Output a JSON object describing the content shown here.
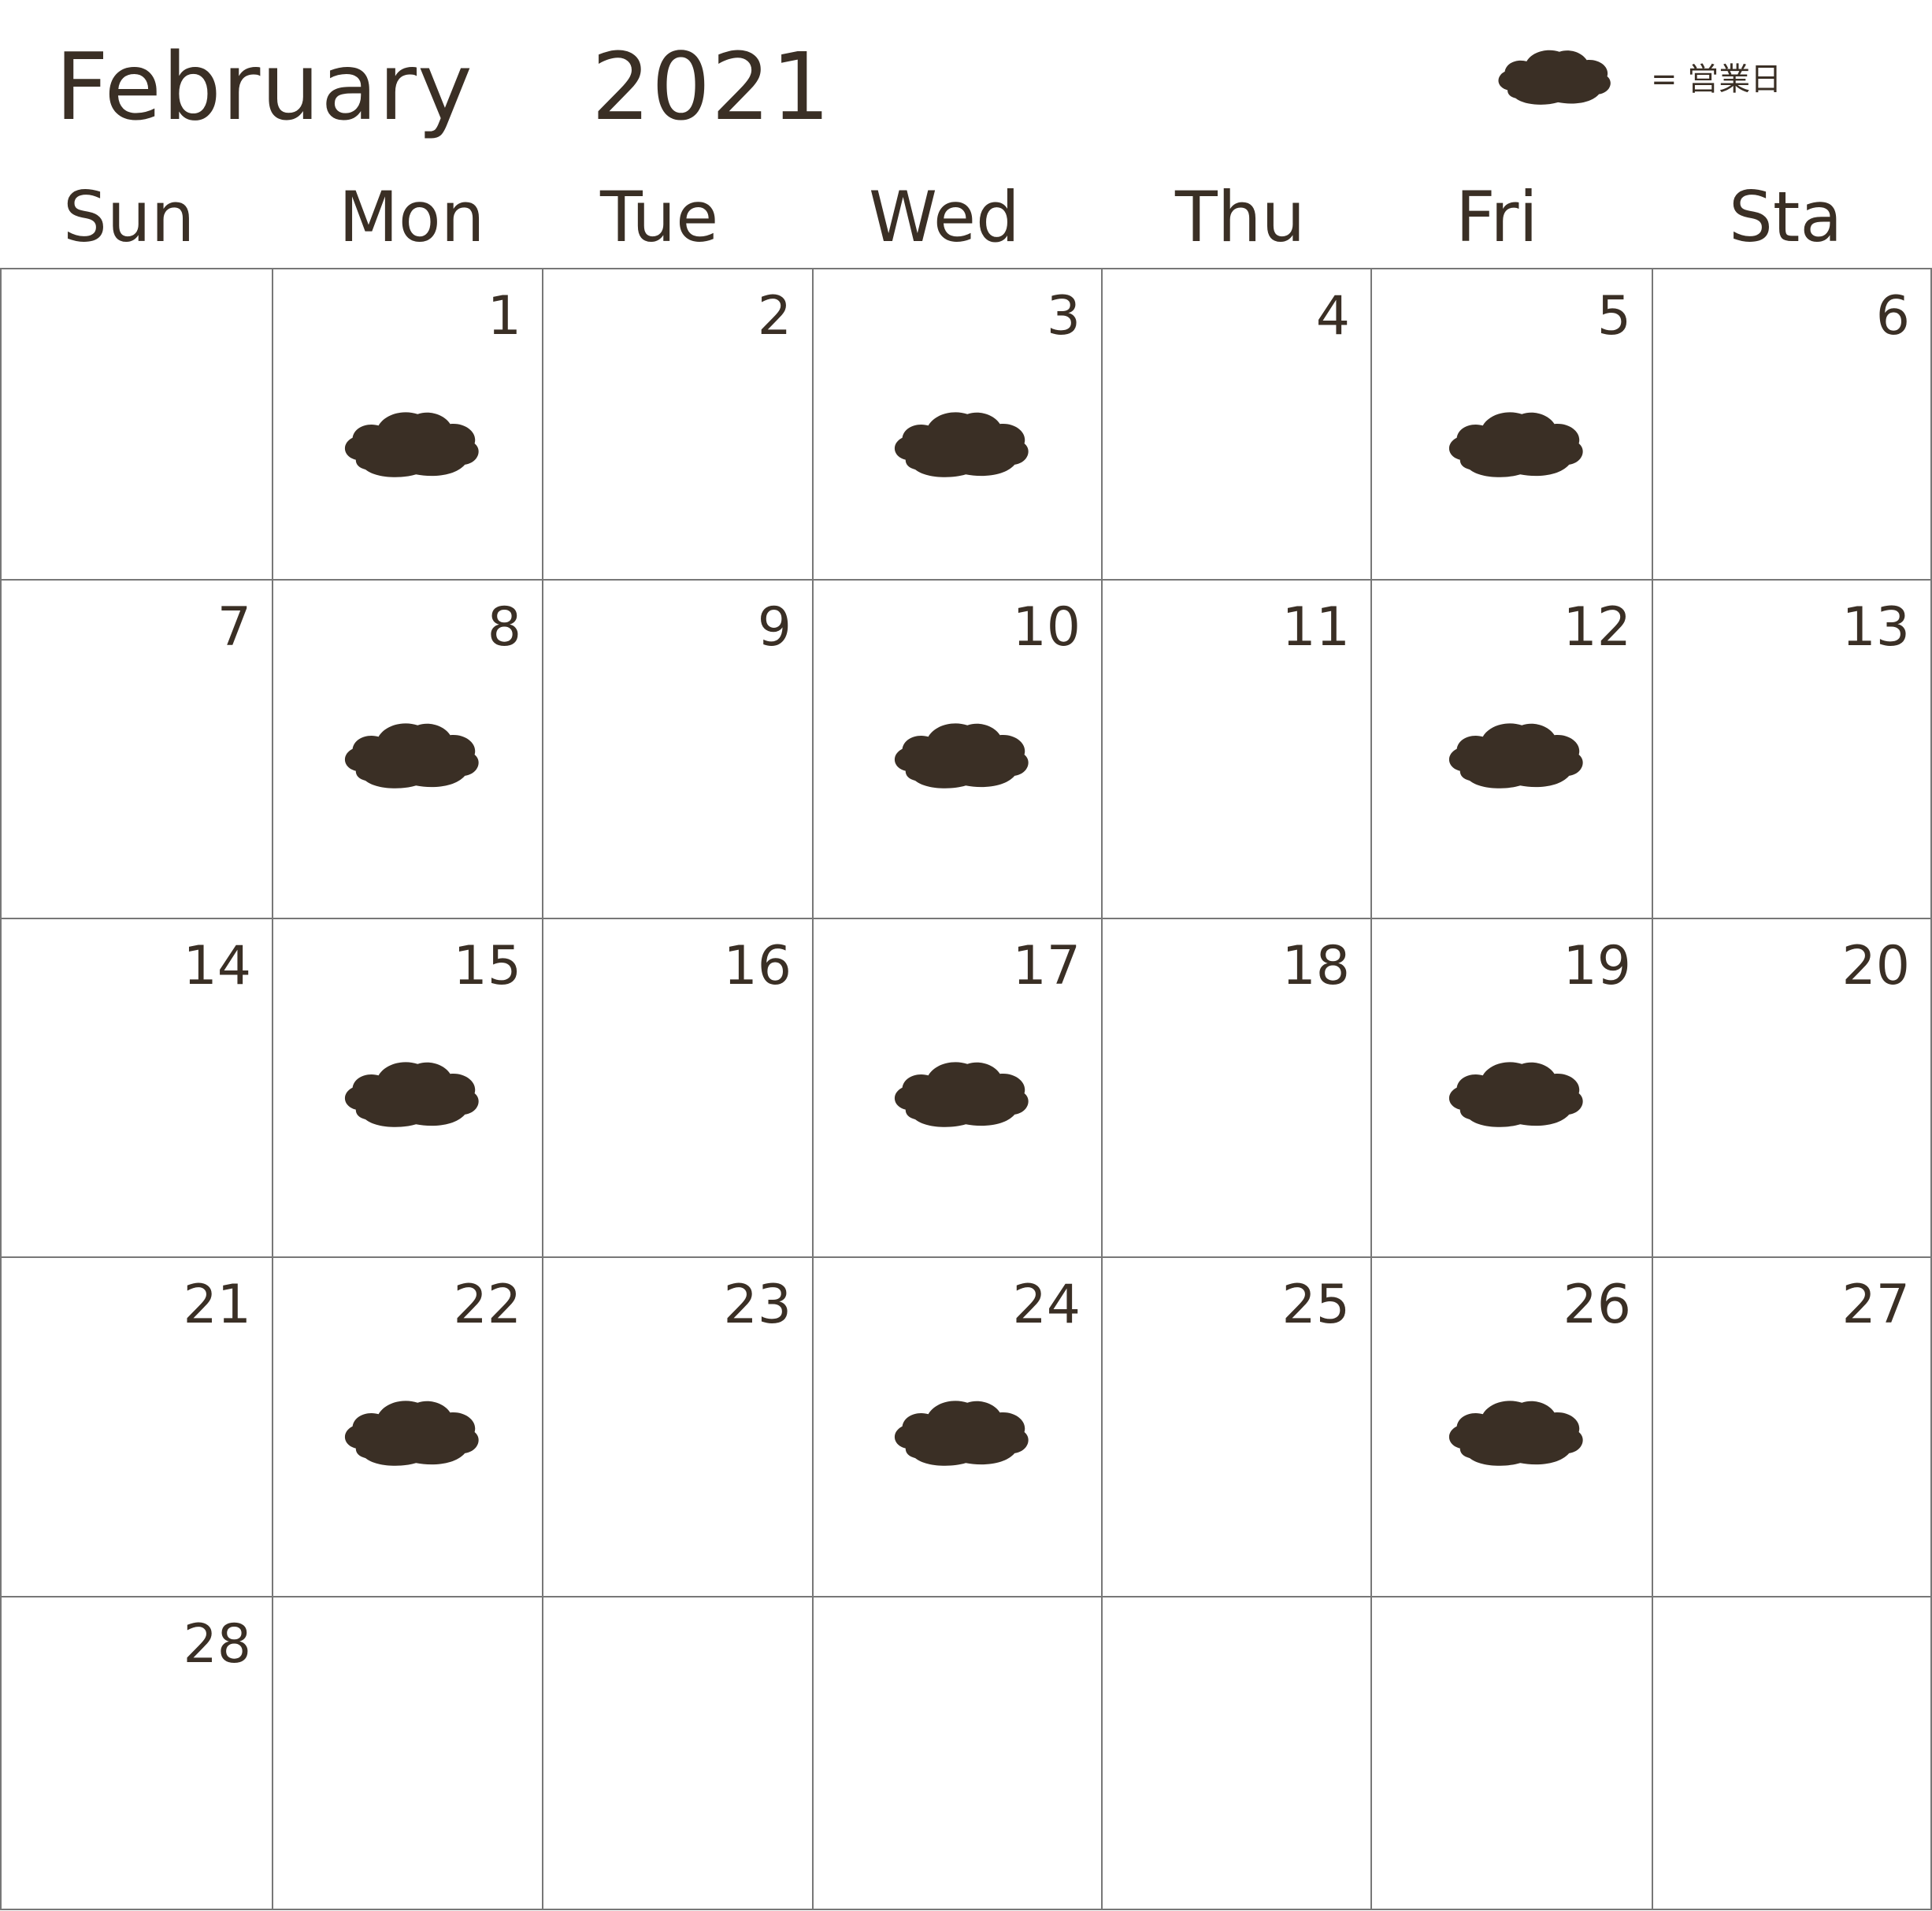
{
  "calendar": {
    "month": "February",
    "year": "2021"
  },
  "legend": {
    "icon": "cloud-blob-icon",
    "label": "= 営業日"
  },
  "colors": {
    "ink": "#3a2f25",
    "grid": "#777777",
    "background": "#ffffff"
  },
  "weekdays": [
    "Sun",
    "Mon",
    "Tue",
    "Wed",
    "Thu",
    "Fri",
    "Sta"
  ],
  "weeks": [
    [
      {
        "day": "",
        "open": false
      },
      {
        "day": "1",
        "open": true
      },
      {
        "day": "2",
        "open": false
      },
      {
        "day": "3",
        "open": true
      },
      {
        "day": "4",
        "open": false
      },
      {
        "day": "5",
        "open": true
      },
      {
        "day": "6",
        "open": false
      }
    ],
    [
      {
        "day": "7",
        "open": false
      },
      {
        "day": "8",
        "open": true
      },
      {
        "day": "9",
        "open": false
      },
      {
        "day": "10",
        "open": true
      },
      {
        "day": "11",
        "open": false
      },
      {
        "day": "12",
        "open": true
      },
      {
        "day": "13",
        "open": false
      }
    ],
    [
      {
        "day": "14",
        "open": false
      },
      {
        "day": "15",
        "open": true
      },
      {
        "day": "16",
        "open": false
      },
      {
        "day": "17",
        "open": true
      },
      {
        "day": "18",
        "open": false
      },
      {
        "day": "19",
        "open": true
      },
      {
        "day": "20",
        "open": false
      }
    ],
    [
      {
        "day": "21",
        "open": false
      },
      {
        "day": "22",
        "open": true
      },
      {
        "day": "23",
        "open": false
      },
      {
        "day": "24",
        "open": true
      },
      {
        "day": "25",
        "open": false
      },
      {
        "day": "26",
        "open": true
      },
      {
        "day": "27",
        "open": false
      }
    ],
    [
      {
        "day": "28",
        "open": false
      },
      {
        "day": "",
        "open": false
      },
      {
        "day": "",
        "open": false
      },
      {
        "day": "",
        "open": false
      },
      {
        "day": "",
        "open": false
      },
      {
        "day": "",
        "open": false
      },
      {
        "day": "",
        "open": false
      }
    ]
  ]
}
